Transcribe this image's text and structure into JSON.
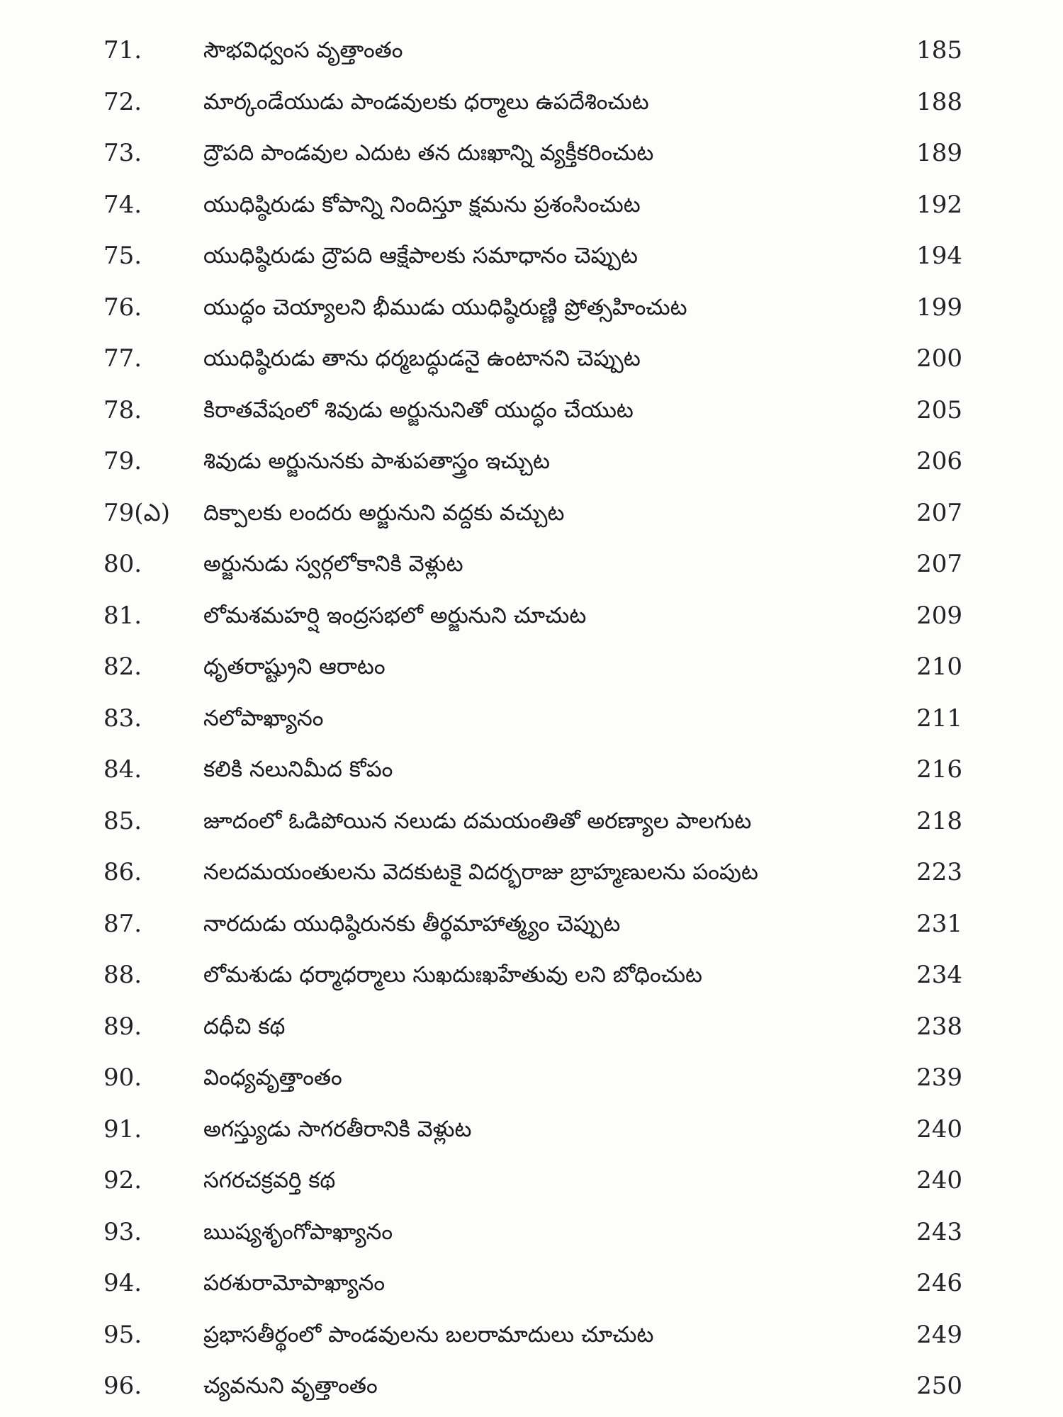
{
  "toc": {
    "entries": [
      {
        "num": "71.",
        "title": "సౌభవిధ్వంస వృత్తాంతం",
        "page": "185"
      },
      {
        "num": "72.",
        "title": "మార్కండేయుడు పాండవులకు ధర్మాలు ఉపదేశించుట",
        "page": "188"
      },
      {
        "num": "73.",
        "title": "ద్రౌపది పాండవుల ఎదుట తన దుఃఖాన్ని వ్యక్తీకరించుట",
        "page": "189"
      },
      {
        "num": "74.",
        "title": "యుధిష్ఠిరుడు కోపాన్ని నిందిస్తూ క్షమను ప్రశంసించుట",
        "page": "192"
      },
      {
        "num": "75.",
        "title": "యుధిష్ఠిరుడు ద్రౌపది ఆక్షేపాలకు సమాధానం చెప్పుట",
        "page": "194"
      },
      {
        "num": "76.",
        "title": "యుద్ధం చెయ్యాలని భీముడు యుధిష్ఠిరుణ్ణి ప్రోత్సహించుట",
        "page": "199"
      },
      {
        "num": "77.",
        "title": "యుధిష్ఠిరుడు తాను ధర్మబద్ధుడనై ఉంటానని చెప్పుట",
        "page": "200"
      },
      {
        "num": "78.",
        "title": "కిరాతవేషంలో శివుడు అర్జునునితో యుద్ధం చేయుట",
        "page": "205"
      },
      {
        "num": "79.",
        "title": "శివుడు అర్జునునకు పాశుపతాస్త్రం ఇచ్చుట",
        "page": "206"
      },
      {
        "num": "79(ఎ)",
        "title": "దిక్పాలకు లందరు అర్జునుని వద్దకు వచ్చుట",
        "page": "207"
      },
      {
        "num": "80.",
        "title": "అర్జునుడు స్వర్గలోకానికి వెళ్లుట",
        "page": "207"
      },
      {
        "num": "81.",
        "title": "లోమశమహర్షి ఇంద్రసభలో అర్జునుని చూచుట",
        "page": "209"
      },
      {
        "num": "82.",
        "title": "ధృతరాష్ట్రుని ఆరాటం",
        "page": "210"
      },
      {
        "num": "83.",
        "title": "నలోపాఖ్యానం",
        "page": "211"
      },
      {
        "num": "84.",
        "title": "కలికి నలునిమీద కోపం",
        "page": "216"
      },
      {
        "num": "85.",
        "title": "జూదంలో ఓడిపోయిన నలుడు దమయంతితో అరణ్యాల పాలగుట",
        "page": "218"
      },
      {
        "num": "86.",
        "title": "నలదమయంతులను వెదకుటకై విదర్భరాజు బ్రాహ్మణులను పంపుట",
        "page": "223"
      },
      {
        "num": "87.",
        "title": "నారదుడు యుధిష్ఠిరునకు తీర్థమాహాత్మ్యం చెప్పుట",
        "page": "231"
      },
      {
        "num": "88.",
        "title": "లోమశుడు ధర్మాధర్మాలు సుఖదుఃఖహేతువు లని బోధించుట",
        "page": "234"
      },
      {
        "num": "89.",
        "title": "దధీచి కథ",
        "page": "238"
      },
      {
        "num": "90.",
        "title": "వింధ్యవృత్తాంతం",
        "page": "239"
      },
      {
        "num": "91.",
        "title": "అగస్త్యుడు సాగరతీరానికి వెళ్లుట",
        "page": "240"
      },
      {
        "num": "92.",
        "title": "సగరచక్రవర్తి కథ",
        "page": "240"
      },
      {
        "num": "93.",
        "title": "ఋష్యశృంగోపాఖ్యానం",
        "page": "243"
      },
      {
        "num": "94.",
        "title": "పరశురామోపాఖ్యానం",
        "page": "246"
      },
      {
        "num": "95.",
        "title": "ప్రభాసతీర్థంలో పాండవులను బలరామాదులు చూచుట",
        "page": "249"
      },
      {
        "num": "96.",
        "title": "చ్యవనుని వృత్తాంతం",
        "page": "250"
      }
    ]
  }
}
